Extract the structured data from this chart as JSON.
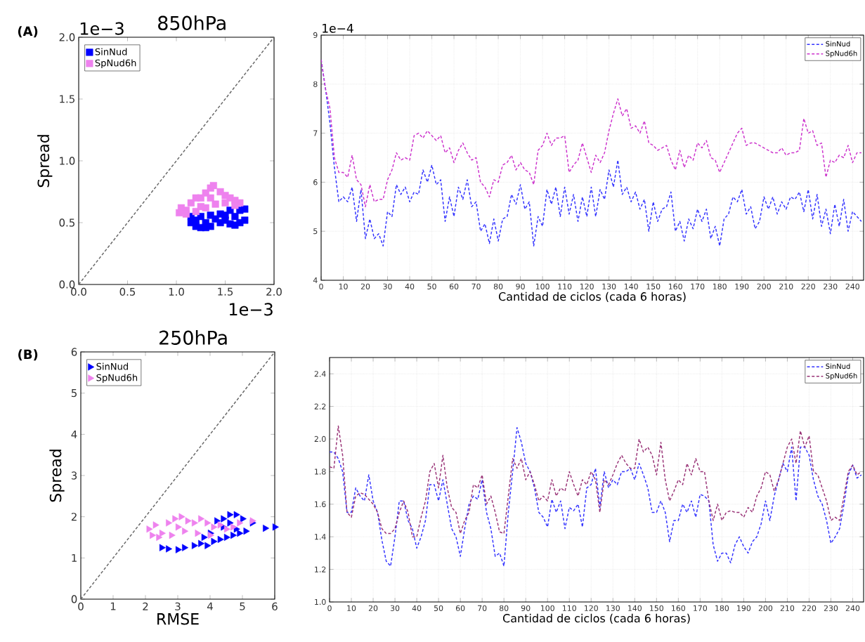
{
  "chart_data": [
    {
      "type": "scatter",
      "title": "850hPa",
      "ylabel": "Spread",
      "annotations": [
        "(A)",
        "1e−3",
        "1e−3"
      ],
      "xlim": [
        0,
        2
      ],
      "ylim": [
        0,
        2
      ],
      "xticks": [
        {
          "value": 0,
          "label": "0.0"
        },
        {
          "value": 0.5,
          "label": "0.5"
        },
        {
          "value": 1,
          "label": "1.0"
        },
        {
          "value": 1.5,
          "label": "1.5"
        },
        {
          "value": 2,
          "label": "2.0"
        }
      ],
      "yticks": [
        {
          "value": 0,
          "label": "0.0"
        },
        {
          "value": 0.5,
          "label": "0.5"
        },
        {
          "value": 1,
          "label": "1.0"
        },
        {
          "value": 1.5,
          "label": "1.5"
        },
        {
          "value": 2,
          "label": "2.0"
        }
      ],
      "legend": "top left",
      "series": [
        {
          "name": "SinNud",
          "color": "#0000ff",
          "marker": "square",
          "x": [
            1.15,
            1.2,
            1.25,
            1.3,
            1.35,
            1.45,
            1.5,
            1.55,
            1.6,
            1.65,
            1.7,
            1.15,
            1.25,
            1.35,
            1.45,
            1.55,
            1.65,
            1.2,
            1.3,
            1.4,
            1.5,
            1.6,
            1.7
          ],
          "values": [
            0.5,
            0.47,
            0.46,
            0.46,
            0.47,
            0.5,
            0.52,
            0.49,
            0.48,
            0.5,
            0.52,
            0.55,
            0.55,
            0.56,
            0.57,
            0.6,
            0.6,
            0.52,
            0.5,
            0.53,
            0.56,
            0.55,
            0.61
          ]
        },
        {
          "name": "SpNud6h",
          "color": "#ee82ee",
          "marker": "square",
          "x": [
            1.03,
            1.05,
            1.1,
            1.15,
            1.2,
            1.25,
            1.3,
            1.35,
            1.45,
            1.5,
            1.55,
            1.6,
            1.65,
            1.1,
            1.2,
            1.3,
            1.4,
            1.5,
            1.6,
            1.35,
            1.38,
            1.25
          ],
          "values": [
            0.58,
            0.62,
            0.6,
            0.66,
            0.7,
            0.7,
            0.74,
            0.78,
            0.75,
            0.72,
            0.7,
            0.68,
            0.66,
            0.57,
            0.59,
            0.62,
            0.65,
            0.66,
            0.64,
            0.7,
            0.8,
            0.63
          ]
        },
        {
          "type": "line",
          "color": "#666666",
          "marker": "none",
          "line_style": "dashed",
          "x": [
            0,
            2
          ],
          "values": [
            0,
            2
          ]
        }
      ]
    },
    {
      "type": "line",
      "xlabel": "Cantidad de ciclos (cada 6 horas)",
      "annotations": [
        "1e−4"
      ],
      "xlim": [
        0,
        245
      ],
      "ylim": [
        4,
        9
      ],
      "xticks": [
        0,
        10,
        20,
        30,
        40,
        50,
        60,
        70,
        80,
        90,
        100,
        110,
        120,
        130,
        140,
        150,
        160,
        170,
        180,
        190,
        200,
        210,
        220,
        230,
        240
      ],
      "yticks": [
        4,
        5,
        6,
        7,
        8,
        9
      ],
      "grid": true,
      "legend": "top right",
      "line_style": "dashed",
      "marker": "none",
      "x": [
        0,
        2,
        4,
        6,
        8,
        10,
        12,
        14,
        16,
        18,
        20,
        22,
        24,
        26,
        28,
        30,
        32,
        34,
        36,
        38,
        40,
        42,
        44,
        46,
        48,
        50,
        52,
        54,
        56,
        58,
        60,
        62,
        64,
        66,
        68,
        70,
        72,
        74,
        76,
        78,
        80,
        82,
        84,
        86,
        88,
        90,
        92,
        94,
        96,
        98,
        100,
        102,
        104,
        106,
        108,
        110,
        112,
        114,
        116,
        118,
        120,
        122,
        124,
        126,
        128,
        130,
        132,
        134,
        136,
        138,
        140,
        142,
        144,
        146,
        148,
        150,
        152,
        154,
        156,
        158,
        160,
        162,
        164,
        166,
        168,
        170,
        172,
        174,
        176,
        178,
        180,
        182,
        184,
        186,
        188,
        190,
        192,
        194,
        196,
        198,
        200,
        202,
        204,
        206,
        208,
        210,
        212,
        214,
        216,
        218,
        220,
        222,
        224,
        226,
        228,
        230,
        232,
        234,
        236,
        238,
        240,
        242,
        244
      ],
      "series": [
        {
          "name": "SinNud",
          "color": "#3333ff",
          "values": [
            8.5,
            7.9,
            7.2,
            6.3,
            5.6,
            5.7,
            5.6,
            5.9,
            5.2,
            5.85,
            4.85,
            5.25,
            4.85,
            4.95,
            4.7,
            5.4,
            5.3,
            5.95,
            5.75,
            5.9,
            5.6,
            5.8,
            5.75,
            6.25,
            6.0,
            6.35,
            5.95,
            6.05,
            5.2,
            5.7,
            5.3,
            5.9,
            5.65,
            6.05,
            5.5,
            5.6,
            5.0,
            5.15,
            4.75,
            5.25,
            4.8,
            5.25,
            5.3,
            5.75,
            5.55,
            5.95,
            5.45,
            5.6,
            4.7,
            5.3,
            5.1,
            5.85,
            5.55,
            5.9,
            5.3,
            5.9,
            5.35,
            5.75,
            5.2,
            5.7,
            5.3,
            5.9,
            5.3,
            5.85,
            5.65,
            6.25,
            5.9,
            6.45,
            5.75,
            5.9,
            5.6,
            5.8,
            5.45,
            5.65,
            5.0,
            5.6,
            5.2,
            5.45,
            5.5,
            5.8,
            5.0,
            5.2,
            4.8,
            5.25,
            5.05,
            5.45,
            5.2,
            5.45,
            4.85,
            5.1,
            4.7,
            5.25,
            5.35,
            5.7,
            5.6,
            5.85,
            5.35,
            5.5,
            5.05,
            5.2,
            5.7,
            5.45,
            5.7,
            5.35,
            5.6,
            5.45,
            5.7,
            5.65,
            5.8,
            5.4,
            5.85,
            5.25,
            5.75,
            5.1,
            5.45,
            4.95,
            5.55,
            5.1,
            5.65,
            5.0,
            5.4,
            5.3,
            5.2
          ]
        },
        {
          "name": "SpNud6h",
          "color": "#cc33cc",
          "values": [
            8.5,
            7.9,
            7.5,
            6.5,
            6.2,
            6.2,
            6.1,
            6.55,
            6.05,
            5.95,
            5.5,
            5.95,
            5.6,
            5.65,
            5.65,
            6.05,
            6.25,
            6.6,
            6.45,
            6.5,
            6.45,
            6.95,
            7.0,
            6.9,
            7.05,
            6.95,
            6.85,
            6.95,
            6.6,
            6.7,
            6.4,
            6.65,
            6.8,
            6.6,
            6.45,
            6.5,
            6.0,
            5.9,
            5.7,
            6.05,
            6.0,
            6.35,
            6.4,
            6.55,
            6.25,
            6.4,
            6.25,
            6.2,
            5.95,
            6.65,
            6.75,
            7.0,
            6.75,
            6.9,
            6.9,
            6.95,
            6.2,
            6.35,
            6.45,
            6.8,
            6.5,
            6.2,
            6.55,
            6.4,
            6.6,
            7.05,
            7.4,
            7.7,
            7.35,
            7.5,
            7.1,
            7.15,
            7.0,
            7.25,
            6.8,
            6.75,
            6.65,
            6.7,
            6.75,
            6.45,
            6.25,
            6.65,
            6.3,
            6.55,
            6.45,
            6.8,
            6.7,
            6.85,
            6.5,
            6.45,
            6.2,
            6.4,
            6.6,
            6.8,
            7.0,
            7.1,
            6.75,
            6.8,
            6.8,
            6.75,
            6.7,
            6.65,
            6.6,
            6.6,
            6.7,
            6.55,
            6.6,
            6.6,
            6.65,
            7.3,
            7.0,
            7.05,
            6.75,
            6.8,
            6.1,
            6.45,
            6.4,
            6.55,
            6.5,
            6.75,
            6.4,
            6.6,
            6.6
          ]
        }
      ]
    },
    {
      "type": "scatter",
      "title": "250hPa",
      "xlabel": "RMSE",
      "ylabel": "Spread",
      "annotations": [
        "(B)"
      ],
      "xlim": [
        0,
        6
      ],
      "ylim": [
        0,
        6
      ],
      "xticks": [
        0,
        1,
        2,
        3,
        4,
        5,
        6
      ],
      "yticks": [
        0,
        1,
        2,
        3,
        4,
        5,
        6
      ],
      "legend": "top left",
      "series": [
        {
          "name": "SinNud",
          "color": "#0000ff",
          "marker": "triangle",
          "x": [
            2.5,
            2.7,
            3.0,
            3.2,
            3.5,
            3.7,
            3.9,
            4.1,
            4.3,
            4.5,
            4.7,
            4.9,
            5.1,
            5.3,
            5.7,
            6.0,
            4.2,
            4.4,
            4.6,
            4.8,
            5.0,
            3.8,
            4.0,
            4.4,
            4.6,
            4.8
          ],
          "values": [
            1.25,
            1.22,
            1.2,
            1.25,
            1.3,
            1.35,
            1.3,
            1.4,
            1.45,
            1.5,
            1.55,
            1.6,
            1.65,
            1.85,
            1.72,
            1.75,
            1.9,
            1.95,
            2.05,
            2.05,
            1.95,
            1.5,
            1.6,
            1.75,
            1.85,
            1.7
          ]
        },
        {
          "name": "SpNud6h",
          "color": "#ee82ee",
          "marker": "triangle",
          "x": [
            2.1,
            2.2,
            2.3,
            2.5,
            2.7,
            2.9,
            3.1,
            3.3,
            3.5,
            3.7,
            3.9,
            4.1,
            4.3,
            4.5,
            4.7,
            4.9,
            5.3,
            2.4,
            2.8,
            3.2,
            3.6,
            4.0,
            3.0
          ],
          "values": [
            1.7,
            1.55,
            1.8,
            1.6,
            1.85,
            1.95,
            2.0,
            1.9,
            1.85,
            1.95,
            1.85,
            1.75,
            1.8,
            1.7,
            1.75,
            1.85,
            1.9,
            1.5,
            1.55,
            1.65,
            1.6,
            1.55,
            1.75
          ]
        },
        {
          "type": "line",
          "color": "#666666",
          "marker": "none",
          "line_style": "dashed",
          "x": [
            0,
            6
          ],
          "values": [
            0,
            6
          ]
        }
      ]
    },
    {
      "type": "line",
      "xlabel": "Cantidad de ciclos (cada 6 horas)",
      "xlim": [
        0,
        245
      ],
      "ylim": [
        1.0,
        2.5
      ],
      "xticks": [
        0,
        10,
        20,
        30,
        40,
        50,
        60,
        70,
        80,
        90,
        100,
        110,
        120,
        130,
        140,
        150,
        160,
        170,
        180,
        190,
        200,
        210,
        220,
        230,
        240
      ],
      "yticks": [
        {
          "value": 1.0,
          "label": "1.0"
        },
        {
          "value": 1.2,
          "label": "1.2"
        },
        {
          "value": 1.4,
          "label": "1.4"
        },
        {
          "value": 1.6,
          "label": "1.6"
        },
        {
          "value": 1.8,
          "label": "1.8"
        },
        {
          "value": 2.0,
          "label": "2.0"
        },
        {
          "value": 2.2,
          "label": "2.2"
        },
        {
          "value": 2.4,
          "label": "2.4"
        }
      ],
      "grid": true,
      "legend": "top right",
      "line_style": "dashed",
      "marker": "none",
      "x": [
        0,
        2,
        4,
        6,
        8,
        10,
        12,
        14,
        16,
        18,
        20,
        22,
        24,
        26,
        28,
        30,
        32,
        34,
        36,
        38,
        40,
        42,
        44,
        46,
        48,
        50,
        52,
        54,
        56,
        58,
        60,
        62,
        64,
        66,
        68,
        70,
        72,
        74,
        76,
        78,
        80,
        82,
        84,
        86,
        88,
        90,
        92,
        94,
        96,
        98,
        100,
        102,
        104,
        106,
        108,
        110,
        112,
        114,
        116,
        118,
        120,
        122,
        124,
        126,
        128,
        130,
        132,
        134,
        136,
        138,
        140,
        142,
        144,
        146,
        148,
        150,
        152,
        154,
        156,
        158,
        160,
        162,
        164,
        166,
        168,
        170,
        172,
        174,
        176,
        178,
        180,
        182,
        184,
        186,
        188,
        190,
        192,
        194,
        196,
        198,
        200,
        202,
        204,
        206,
        208,
        210,
        212,
        214,
        216,
        218,
        220,
        222,
        224,
        226,
        228,
        230,
        232,
        234,
        236,
        238,
        240,
        242,
        244
      ],
      "series": [
        {
          "name": "SinNud",
          "color": "#3333ff",
          "values": [
            1.92,
            1.92,
            1.88,
            1.8,
            1.55,
            1.55,
            1.7,
            1.65,
            1.62,
            1.78,
            1.62,
            1.55,
            1.38,
            1.25,
            1.22,
            1.4,
            1.62,
            1.62,
            1.5,
            1.45,
            1.33,
            1.4,
            1.5,
            1.72,
            1.72,
            1.62,
            1.75,
            1.6,
            1.45,
            1.4,
            1.28,
            1.45,
            1.6,
            1.65,
            1.63,
            1.75,
            1.55,
            1.45,
            1.28,
            1.3,
            1.22,
            1.55,
            1.8,
            2.07,
            1.98,
            1.85,
            1.8,
            1.7,
            1.55,
            1.52,
            1.46,
            1.63,
            1.55,
            1.62,
            1.45,
            1.58,
            1.56,
            1.6,
            1.46,
            1.7,
            1.72,
            1.82,
            1.58,
            1.8,
            1.7,
            1.75,
            1.72,
            1.8,
            1.8,
            1.82,
            1.75,
            1.85,
            1.78,
            1.7,
            1.55,
            1.55,
            1.62,
            1.55,
            1.37,
            1.5,
            1.5,
            1.6,
            1.55,
            1.62,
            1.52,
            1.66,
            1.65,
            1.62,
            1.35,
            1.25,
            1.3,
            1.3,
            1.24,
            1.35,
            1.4,
            1.34,
            1.3,
            1.37,
            1.4,
            1.48,
            1.62,
            1.5,
            1.65,
            1.75,
            1.85,
            1.8,
            1.95,
            1.62,
            1.95,
            1.95,
            1.9,
            1.75,
            1.65,
            1.6,
            1.5,
            1.36,
            1.4,
            1.45,
            1.6,
            1.78,
            1.84,
            1.76,
            1.78
          ]
        },
        {
          "name": "SpNud6h",
          "color": "#993377",
          "values": [
            1.83,
            1.82,
            2.08,
            1.9,
            1.55,
            1.52,
            1.65,
            1.67,
            1.66,
            1.63,
            1.6,
            1.55,
            1.45,
            1.42,
            1.42,
            1.45,
            1.55,
            1.62,
            1.55,
            1.4,
            1.4,
            1.52,
            1.62,
            1.8,
            1.85,
            1.7,
            1.9,
            1.7,
            1.58,
            1.55,
            1.42,
            1.5,
            1.55,
            1.72,
            1.7,
            1.78,
            1.6,
            1.65,
            1.55,
            1.43,
            1.42,
            1.65,
            1.88,
            1.82,
            1.88,
            1.75,
            1.8,
            1.72,
            1.62,
            1.65,
            1.62,
            1.75,
            1.65,
            1.7,
            1.68,
            1.8,
            1.72,
            1.65,
            1.75,
            1.72,
            1.8,
            1.75,
            1.55,
            1.75,
            1.72,
            1.78,
            1.85,
            1.9,
            1.85,
            1.82,
            1.82,
            2.0,
            1.92,
            1.95,
            1.9,
            1.78,
            1.98,
            1.75,
            1.62,
            1.68,
            1.75,
            1.72,
            1.85,
            1.78,
            1.88,
            1.8,
            1.8,
            1.62,
            1.5,
            1.6,
            1.5,
            1.55,
            1.56,
            1.55,
            1.55,
            1.52,
            1.58,
            1.55,
            1.65,
            1.7,
            1.8,
            1.78,
            1.68,
            1.75,
            1.85,
            1.95,
            2.0,
            1.85,
            2.05,
            1.95,
            2.02,
            1.8,
            1.78,
            1.7,
            1.62,
            1.5,
            1.52,
            1.5,
            1.65,
            1.8,
            1.84,
            1.78,
            1.8
          ]
        }
      ]
    }
  ]
}
